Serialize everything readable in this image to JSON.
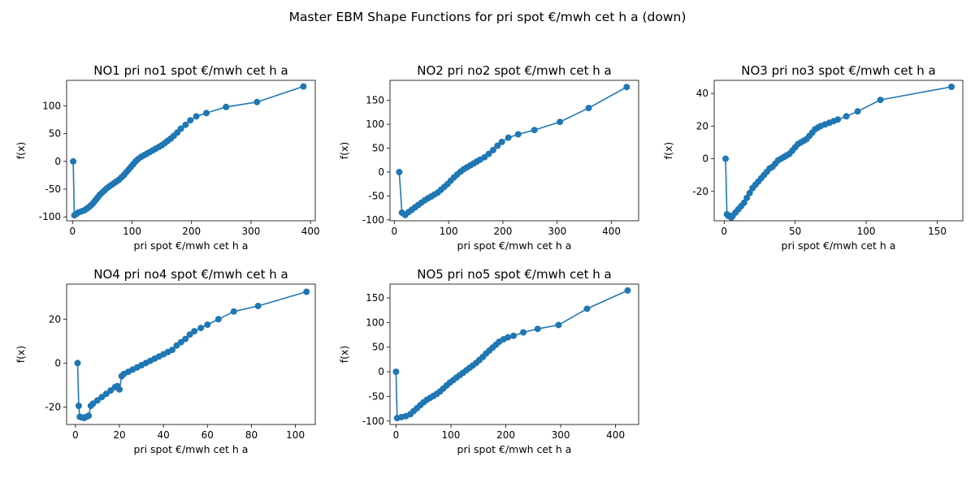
{
  "figure": {
    "title": "Master EBM Shape Functions for pri  spot €/mwh cet h a (down)",
    "line_color": "#1f77b4"
  },
  "chart_data": [
    {
      "type": "line",
      "title": "NO1 pri no1 spot €/mwh cet h a",
      "xlabel": "pri  spot €/mwh cet h a",
      "ylabel": "f(x)",
      "xlim": [
        -10,
        408
      ],
      "ylim": [
        -107,
        146
      ],
      "xticks": [
        0,
        100,
        200,
        300,
        400
      ],
      "yticks": [
        -100,
        -50,
        0,
        50,
        100
      ],
      "series": [
        {
          "x": [
            1,
            3,
            6,
            10,
            15,
            20,
            24,
            28,
            31,
            34,
            37,
            40,
            43,
            46,
            50,
            54,
            58,
            62,
            66,
            70,
            74,
            78,
            82,
            86,
            90,
            94,
            98,
            102,
            106,
            110,
            115,
            120,
            125,
            130,
            135,
            140,
            145,
            150,
            155,
            160,
            165,
            170,
            176,
            182,
            190,
            198,
            208,
            225,
            258,
            310,
            388
          ],
          "y": [
            0,
            -97,
            -95,
            -92,
            -90,
            -88,
            -85,
            -82,
            -79,
            -76,
            -72,
            -68,
            -64,
            -60,
            -56,
            -52,
            -48,
            -45,
            -42,
            -39,
            -36,
            -33,
            -29,
            -25,
            -20,
            -15,
            -10,
            -5,
            0,
            4,
            8,
            11,
            14,
            17,
            20,
            23,
            26,
            29,
            33,
            37,
            41,
            46,
            52,
            59,
            66,
            74,
            81,
            87,
            98,
            107,
            135
          ]
        }
      ]
    },
    {
      "type": "line",
      "title": "NO2 pri no2 spot €/mwh cet h a",
      "xlabel": "pri  spot €/mwh cet h a",
      "ylabel": "f(x)",
      "xlim": [
        -8,
        450
      ],
      "ylim": [
        -102,
        192
      ],
      "xticks": [
        0,
        100,
        200,
        300,
        400
      ],
      "yticks": [
        -100,
        -50,
        0,
        50,
        100,
        150
      ],
      "series": [
        {
          "x": [
            9,
            14,
            20,
            26,
            32,
            38,
            44,
            50,
            56,
            62,
            68,
            74,
            80,
            86,
            92,
            98,
            104,
            110,
            116,
            122,
            128,
            134,
            140,
            146,
            152,
            158,
            166,
            174,
            182,
            190,
            198,
            210,
            228,
            258,
            305,
            358,
            428
          ],
          "y": [
            0,
            -85,
            -90,
            -84,
            -79,
            -74,
            -69,
            -64,
            -59,
            -55,
            -51,
            -47,
            -43,
            -37,
            -31,
            -25,
            -18,
            -11,
            -5,
            1,
            6,
            10,
            14,
            18,
            22,
            26,
            31,
            38,
            46,
            55,
            63,
            72,
            79,
            88,
            105,
            134,
            178
          ]
        }
      ]
    },
    {
      "type": "line",
      "title": "NO3 pri no3 spot €/mwh cet h a",
      "xlabel": "pri  spot €/mwh cet h a",
      "ylabel": "f(x)",
      "xlim": [
        -7,
        168
      ],
      "ylim": [
        -38,
        48
      ],
      "xticks": [
        0,
        50,
        100,
        150
      ],
      "yticks": [
        -20,
        0,
        20,
        40
      ],
      "series": [
        {
          "x": [
            1,
            2,
            3,
            4,
            5,
            6,
            8,
            10,
            12,
            14,
            16,
            18,
            20,
            22,
            24,
            26,
            28,
            30,
            32,
            34,
            36,
            38,
            40,
            42,
            44,
            46,
            48,
            50,
            52,
            54,
            56,
            58,
            60,
            62,
            64,
            66,
            68,
            71,
            74,
            77,
            80,
            86,
            94,
            110,
            160
          ],
          "y": [
            0,
            -34,
            -35,
            -35,
            -36,
            -35,
            -33,
            -31,
            -29,
            -27,
            -24,
            -21,
            -18,
            -16,
            -14,
            -12,
            -10,
            -8,
            -6,
            -5,
            -3,
            -1,
            0,
            1,
            2,
            3,
            5,
            7,
            9,
            10,
            11,
            12,
            14,
            16,
            18,
            19,
            20,
            21,
            22,
            23,
            24,
            26,
            29,
            36,
            44
          ]
        }
      ]
    },
    {
      "type": "line",
      "title": "NO4 pri no4 spot €/mwh cet h a",
      "xlabel": "pri  spot €/mwh cet h a",
      "ylabel": "f(x)",
      "xlim": [
        -4,
        109
      ],
      "ylim": [
        -28,
        36
      ],
      "xticks": [
        0,
        20,
        40,
        60,
        80,
        100
      ],
      "yticks": [
        -20,
        0,
        20
      ],
      "series": [
        {
          "x": [
            1,
            1.5,
            2,
            3,
            4,
            5,
            6,
            7,
            8,
            10,
            12,
            14,
            16,
            18,
            19,
            20,
            21,
            22,
            24,
            26,
            28,
            30,
            32,
            34,
            36,
            38,
            40,
            42,
            44,
            46,
            48,
            50,
            52,
            54,
            57,
            60,
            65,
            72,
            83,
            105
          ],
          "y": [
            0,
            -19.5,
            -24.5,
            -24.8,
            -25,
            -24.5,
            -24,
            -19.5,
            -18.5,
            -17,
            -15.5,
            -14,
            -12.5,
            -11,
            -10.5,
            -12,
            -6,
            -5,
            -4,
            -3,
            -2,
            -1,
            0,
            1,
            2,
            3,
            4,
            5,
            6,
            8,
            9.5,
            11,
            13,
            14.5,
            16,
            17.5,
            20,
            23.5,
            26,
            32.5
          ]
        }
      ]
    },
    {
      "type": "line",
      "title": "NO5 pri no5 spot €/mwh cet h a",
      "xlabel": "pri  spot €/mwh cet h a",
      "ylabel": "f(x)",
      "xlim": [
        -11,
        442
      ],
      "ylim": [
        -107,
        178
      ],
      "xticks": [
        0,
        100,
        200,
        300,
        400
      ],
      "yticks": [
        -100,
        -50,
        0,
        50,
        100,
        150
      ],
      "series": [
        {
          "x": [
            0,
            2,
            10,
            18,
            26,
            32,
            38,
            44,
            50,
            56,
            62,
            68,
            74,
            80,
            86,
            92,
            98,
            104,
            110,
            116,
            122,
            128,
            134,
            140,
            146,
            152,
            158,
            164,
            170,
            176,
            182,
            188,
            196,
            204,
            214,
            232,
            258,
            296,
            348,
            422
          ],
          "y": [
            0,
            -94,
            -92,
            -90,
            -86,
            -80,
            -74,
            -68,
            -62,
            -57,
            -53,
            -49,
            -45,
            -40,
            -34,
            -28,
            -22,
            -17,
            -12,
            -7,
            -2,
            3,
            8,
            13,
            18,
            24,
            30,
            37,
            43,
            49,
            55,
            61,
            66,
            70,
            73,
            80,
            87,
            95,
            128,
            165
          ]
        }
      ]
    }
  ]
}
